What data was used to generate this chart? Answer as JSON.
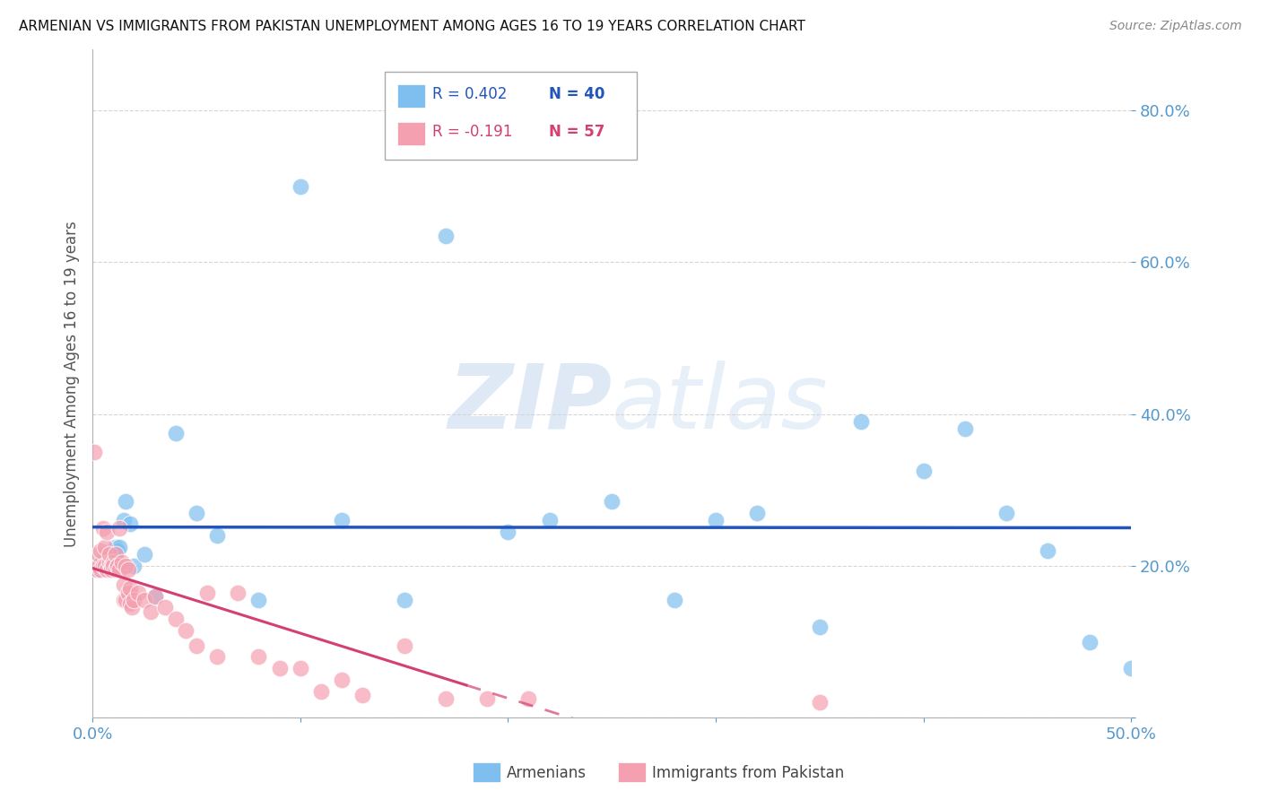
{
  "title": "ARMENIAN VS IMMIGRANTS FROM PAKISTAN UNEMPLOYMENT AMONG AGES 16 TO 19 YEARS CORRELATION CHART",
  "source": "Source: ZipAtlas.com",
  "ylabel": "Unemployment Among Ages 16 to 19 years",
  "xmin": 0.0,
  "xmax": 0.5,
  "ymin": 0.0,
  "ymax": 0.88,
  "armenians_R": 0.402,
  "armenians_N": 40,
  "pakistan_R": -0.191,
  "pakistan_N": 57,
  "blue_color": "#7fbfef",
  "pink_color": "#f4a0b0",
  "blue_line_color": "#2255bb",
  "pink_line_color": "#d44070",
  "background_color": "#ffffff",
  "grid_color": "#cccccc",
  "tick_color": "#5599cc",
  "armenians_x": [
    0.002,
    0.003,
    0.004,
    0.005,
    0.006,
    0.007,
    0.008,
    0.009,
    0.01,
    0.011,
    0.012,
    0.013,
    0.015,
    0.016,
    0.018,
    0.02,
    0.025,
    0.03,
    0.04,
    0.05,
    0.06,
    0.08,
    0.1,
    0.12,
    0.15,
    0.17,
    0.2,
    0.22,
    0.25,
    0.28,
    0.3,
    0.32,
    0.35,
    0.37,
    0.4,
    0.42,
    0.44,
    0.46,
    0.48,
    0.5
  ],
  "armenians_y": [
    0.195,
    0.2,
    0.195,
    0.205,
    0.21,
    0.2,
    0.215,
    0.22,
    0.21,
    0.225,
    0.22,
    0.225,
    0.26,
    0.285,
    0.255,
    0.2,
    0.215,
    0.16,
    0.375,
    0.27,
    0.24,
    0.155,
    0.7,
    0.26,
    0.155,
    0.635,
    0.245,
    0.26,
    0.285,
    0.155,
    0.26,
    0.27,
    0.12,
    0.39,
    0.325,
    0.38,
    0.27,
    0.22,
    0.1,
    0.065
  ],
  "pakistan_x": [
    0.001,
    0.002,
    0.003,
    0.003,
    0.004,
    0.004,
    0.005,
    0.005,
    0.006,
    0.006,
    0.007,
    0.007,
    0.008,
    0.008,
    0.009,
    0.009,
    0.01,
    0.01,
    0.011,
    0.011,
    0.012,
    0.012,
    0.013,
    0.013,
    0.014,
    0.015,
    0.015,
    0.016,
    0.016,
    0.017,
    0.017,
    0.018,
    0.018,
    0.019,
    0.02,
    0.022,
    0.025,
    0.028,
    0.03,
    0.035,
    0.04,
    0.045,
    0.05,
    0.055,
    0.06,
    0.07,
    0.08,
    0.09,
    0.1,
    0.11,
    0.12,
    0.13,
    0.15,
    0.17,
    0.19,
    0.21,
    0.35
  ],
  "pakistan_y": [
    0.35,
    0.195,
    0.2,
    0.215,
    0.22,
    0.195,
    0.2,
    0.25,
    0.2,
    0.225,
    0.195,
    0.245,
    0.205,
    0.215,
    0.2,
    0.195,
    0.205,
    0.2,
    0.195,
    0.215,
    0.2,
    0.2,
    0.195,
    0.25,
    0.205,
    0.175,
    0.155,
    0.155,
    0.2,
    0.195,
    0.165,
    0.17,
    0.15,
    0.145,
    0.155,
    0.165,
    0.155,
    0.14,
    0.16,
    0.145,
    0.13,
    0.115,
    0.095,
    0.165,
    0.08,
    0.165,
    0.08,
    0.065,
    0.065,
    0.035,
    0.05,
    0.03,
    0.095,
    0.025,
    0.025,
    0.025,
    0.02
  ]
}
